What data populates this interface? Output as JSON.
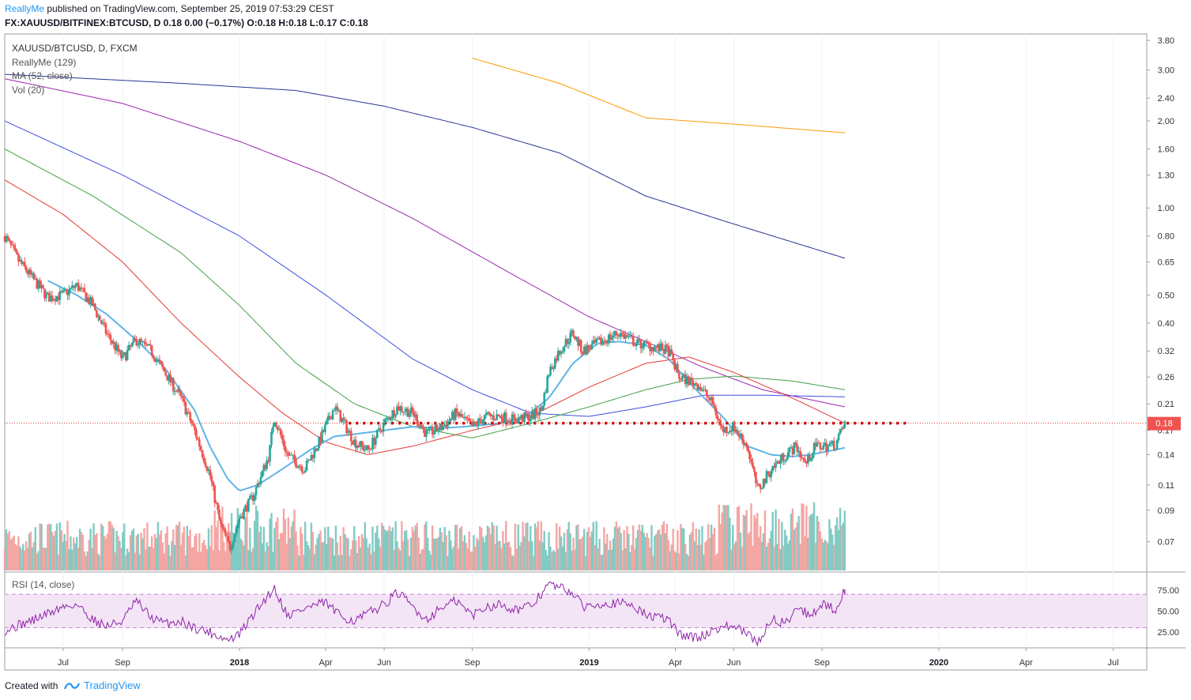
{
  "header": {
    "author": "ReallyMe",
    "published": " published on TradingView.com, September 25, 2019 07:53:29 CEST",
    "symbol_line": "FX:XAUUSD/BITFINEX:BTCUSD, D  0.18 0.00 (−0.17%) O:0.18 H:0.18 L:0.17 C:0.18"
  },
  "legend": {
    "symbol": "XAUUSD/BTCUSD, D, FXCM",
    "indicator1": "ReallyMe (129)",
    "indicator2": "MA (52, close)",
    "indicator3": "Vol (20)"
  },
  "rsi_label": "RSI (14, close)",
  "footer": {
    "created": "Created with",
    "brand": "TradingView"
  },
  "price_badge": "0.18",
  "colors": {
    "up": "#26a69a",
    "down": "#ef5350",
    "vol_up": "#80cbc4",
    "vol_down": "#f4a6a3",
    "ma52": "#5fb4e8",
    "sma_red": "#e53935",
    "sma_green": "#43a047",
    "sma_blue": "#3f51e0",
    "sma_purple": "#9c27b0",
    "sma_navy": "#283593",
    "sma_orange": "#ff9800",
    "rsi": "#8e24aa",
    "rsi_band": "#f3e5f5",
    "support": "#d50000"
  },
  "chart_data": {
    "type": "candlestick",
    "scale": "log",
    "price_ticks": [
      "3.80",
      "3.00",
      "2.40",
      "2.00",
      "1.60",
      "1.30",
      "1.00",
      "0.80",
      "0.65",
      "0.50",
      "0.40",
      "0.32",
      "0.26",
      "0.21",
      "0.17",
      "0.14",
      "0.11",
      "0.09",
      "0.07"
    ],
    "price_tick_values": [
      3.8,
      3.0,
      2.4,
      2.0,
      1.6,
      1.3,
      1.0,
      0.8,
      0.65,
      0.5,
      0.4,
      0.32,
      0.26,
      0.21,
      0.17,
      0.14,
      0.11,
      0.09,
      0.07
    ],
    "ylim": [
      0.055,
      4.0
    ],
    "rsi_ticks": [
      "75.00",
      "50.00",
      "25.00"
    ],
    "rsi_tick_values": [
      75,
      50,
      25
    ],
    "rsi_bands": [
      70,
      30
    ],
    "x_ticks": [
      {
        "label": "Jul",
        "date": "2017-07-01",
        "bold": false
      },
      {
        "label": "Sep",
        "date": "2017-09-01",
        "bold": false
      },
      {
        "label": "2018",
        "date": "2018-01-01",
        "bold": true
      },
      {
        "label": "Apr",
        "date": "2018-04-01",
        "bold": false
      },
      {
        "label": "Jun",
        "date": "2018-06-01",
        "bold": false
      },
      {
        "label": "Sep",
        "date": "2018-09-01",
        "bold": false
      },
      {
        "label": "2019",
        "date": "2019-01-01",
        "bold": true
      },
      {
        "label": "Apr",
        "date": "2019-04-01",
        "bold": false
      },
      {
        "label": "Jun",
        "date": "2019-06-01",
        "bold": false
      },
      {
        "label": "Sep",
        "date": "2019-09-01",
        "bold": false
      },
      {
        "label": "2020",
        "date": "2020-01-01",
        "bold": true
      },
      {
        "label": "Apr",
        "date": "2020-04-01",
        "bold": false
      },
      {
        "label": "Jul",
        "date": "2020-07-01",
        "bold": false
      }
    ],
    "xlim": [
      "2017-05-01",
      "2020-08-05"
    ],
    "last_price": 0.18,
    "support_level": 0.18,
    "support_range": [
      "2018-04-25",
      "2019-12-01"
    ],
    "price_path": [
      [
        "2017-05-01",
        0.8
      ],
      [
        "2017-05-15",
        0.66
      ],
      [
        "2017-06-01",
        0.56
      ],
      [
        "2017-06-15",
        0.49
      ],
      [
        "2017-07-01",
        0.5
      ],
      [
        "2017-07-15",
        0.54
      ],
      [
        "2017-08-01",
        0.46
      ],
      [
        "2017-08-15",
        0.37
      ],
      [
        "2017-09-01",
        0.3
      ],
      [
        "2017-09-15",
        0.35
      ],
      [
        "2017-10-01",
        0.32
      ],
      [
        "2017-10-15",
        0.27
      ],
      [
        "2017-11-01",
        0.22
      ],
      [
        "2017-11-15",
        0.17
      ],
      [
        "2017-12-01",
        0.12
      ],
      [
        "2017-12-12",
        0.08
      ],
      [
        "2017-12-22",
        0.067
      ],
      [
        "2018-01-01",
        0.085
      ],
      [
        "2018-01-15",
        0.1
      ],
      [
        "2018-02-01",
        0.14
      ],
      [
        "2018-02-06",
        0.19
      ],
      [
        "2018-02-20",
        0.14
      ],
      [
        "2018-03-10",
        0.125
      ],
      [
        "2018-03-25",
        0.155
      ],
      [
        "2018-04-10",
        0.205
      ],
      [
        "2018-04-20",
        0.18
      ],
      [
        "2018-05-01",
        0.155
      ],
      [
        "2018-05-15",
        0.145
      ],
      [
        "2018-06-01",
        0.18
      ],
      [
        "2018-06-15",
        0.205
      ],
      [
        "2018-07-01",
        0.195
      ],
      [
        "2018-07-15",
        0.165
      ],
      [
        "2018-08-01",
        0.175
      ],
      [
        "2018-08-15",
        0.195
      ],
      [
        "2018-09-01",
        0.175
      ],
      [
        "2018-09-15",
        0.19
      ],
      [
        "2018-10-01",
        0.19
      ],
      [
        "2018-10-15",
        0.185
      ],
      [
        "2018-11-01",
        0.19
      ],
      [
        "2018-11-12",
        0.2
      ],
      [
        "2018-11-20",
        0.27
      ],
      [
        "2018-12-01",
        0.32
      ],
      [
        "2018-12-15",
        0.37
      ],
      [
        "2018-12-25",
        0.32
      ],
      [
        "2019-01-10",
        0.34
      ],
      [
        "2019-02-01",
        0.37
      ],
      [
        "2019-02-20",
        0.34
      ],
      [
        "2019-03-10",
        0.33
      ],
      [
        "2019-03-25",
        0.32
      ],
      [
        "2019-04-05",
        0.26
      ],
      [
        "2019-04-25",
        0.245
      ],
      [
        "2019-05-10",
        0.21
      ],
      [
        "2019-05-20",
        0.17
      ],
      [
        "2019-06-01",
        0.175
      ],
      [
        "2019-06-15",
        0.15
      ],
      [
        "2019-06-26",
        0.105
      ],
      [
        "2019-07-10",
        0.125
      ],
      [
        "2019-07-25",
        0.14
      ],
      [
        "2019-08-05",
        0.15
      ],
      [
        "2019-08-15",
        0.13
      ],
      [
        "2019-08-25",
        0.15
      ],
      [
        "2019-09-05",
        0.15
      ],
      [
        "2019-09-15",
        0.152
      ],
      [
        "2019-09-25",
        0.18
      ]
    ],
    "ma52_path": [
      [
        "2017-06-15",
        0.56
      ],
      [
        "2017-07-15",
        0.5
      ],
      [
        "2017-08-15",
        0.43
      ],
      [
        "2017-09-15",
        0.35
      ],
      [
        "2017-10-15",
        0.28
      ],
      [
        "2017-11-15",
        0.2
      ],
      [
        "2017-12-01",
        0.15
      ],
      [
        "2017-12-20",
        0.115
      ],
      [
        "2018-01-01",
        0.105
      ],
      [
        "2018-01-20",
        0.11
      ],
      [
        "2018-02-15",
        0.125
      ],
      [
        "2018-03-15",
        0.145
      ],
      [
        "2018-04-10",
        0.162
      ],
      [
        "2018-05-01",
        0.165
      ],
      [
        "2018-06-01",
        0.17
      ],
      [
        "2018-07-01",
        0.175
      ],
      [
        "2018-08-01",
        0.173
      ],
      [
        "2018-09-01",
        0.176
      ],
      [
        "2018-10-01",
        0.18
      ],
      [
        "2018-10-25",
        0.188
      ],
      [
        "2018-11-20",
        0.22
      ],
      [
        "2018-12-15",
        0.29
      ],
      [
        "2019-01-10",
        0.34
      ],
      [
        "2019-02-01",
        0.345
      ],
      [
        "2019-03-01",
        0.335
      ],
      [
        "2019-03-25",
        0.3
      ],
      [
        "2019-04-20",
        0.24
      ],
      [
        "2019-05-20",
        0.19
      ],
      [
        "2019-06-15",
        0.15
      ],
      [
        "2019-07-10",
        0.14
      ],
      [
        "2019-08-01",
        0.138
      ],
      [
        "2019-08-20",
        0.14
      ],
      [
        "2019-09-25",
        0.148
      ]
    ],
    "sma_red_path": [
      [
        "2017-05-01",
        1.25
      ],
      [
        "2017-07-01",
        0.95
      ],
      [
        "2017-09-01",
        0.65
      ],
      [
        "2017-11-01",
        0.4
      ],
      [
        "2018-01-01",
        0.26
      ],
      [
        "2018-02-15",
        0.195
      ],
      [
        "2018-04-01",
        0.155
      ],
      [
        "2018-05-15",
        0.14
      ],
      [
        "2018-07-01",
        0.15
      ],
      [
        "2018-09-01",
        0.17
      ],
      [
        "2018-11-01",
        0.19
      ],
      [
        "2019-01-01",
        0.24
      ],
      [
        "2019-03-01",
        0.29
      ],
      [
        "2019-04-15",
        0.305
      ],
      [
        "2019-06-01",
        0.27
      ],
      [
        "2019-08-01",
        0.22
      ],
      [
        "2019-09-25",
        0.18
      ]
    ],
    "sma_green_path": [
      [
        "2017-05-01",
        1.6
      ],
      [
        "2017-08-01",
        1.1
      ],
      [
        "2017-11-01",
        0.7
      ],
      [
        "2018-01-01",
        0.46
      ],
      [
        "2018-03-01",
        0.29
      ],
      [
        "2018-05-01",
        0.21
      ],
      [
        "2018-07-01",
        0.175
      ],
      [
        "2018-09-01",
        0.16
      ],
      [
        "2018-11-01",
        0.18
      ],
      [
        "2019-01-01",
        0.205
      ],
      [
        "2019-03-01",
        0.235
      ],
      [
        "2019-04-15",
        0.255
      ],
      [
        "2019-06-01",
        0.262
      ],
      [
        "2019-08-01",
        0.252
      ],
      [
        "2019-09-25",
        0.235
      ]
    ],
    "sma_blue_path": [
      [
        "2017-05-01",
        2.0
      ],
      [
        "2017-09-01",
        1.3
      ],
      [
        "2018-01-01",
        0.8
      ],
      [
        "2018-04-01",
        0.5
      ],
      [
        "2018-07-01",
        0.3
      ],
      [
        "2018-09-01",
        0.235
      ],
      [
        "2018-11-01",
        0.195
      ],
      [
        "2019-01-01",
        0.19
      ],
      [
        "2019-03-01",
        0.205
      ],
      [
        "2019-05-01",
        0.225
      ],
      [
        "2019-07-01",
        0.225
      ],
      [
        "2019-09-25",
        0.222
      ]
    ],
    "sma_purple_path": [
      [
        "2017-05-01",
        2.8
      ],
      [
        "2017-09-01",
        2.3
      ],
      [
        "2018-01-01",
        1.7
      ],
      [
        "2018-04-01",
        1.3
      ],
      [
        "2018-07-01",
        0.92
      ],
      [
        "2018-10-01",
        0.62
      ],
      [
        "2019-01-01",
        0.42
      ],
      [
        "2019-03-01",
        0.345
      ],
      [
        "2019-05-01",
        0.28
      ],
      [
        "2019-07-01",
        0.235
      ],
      [
        "2019-09-25",
        0.205
      ]
    ],
    "sma_navy_path": [
      [
        "2017-05-01",
        2.9
      ],
      [
        "2017-11-01",
        2.7
      ],
      [
        "2018-03-01",
        2.55
      ],
      [
        "2018-06-01",
        2.25
      ],
      [
        "2018-09-01",
        1.9
      ],
      [
        "2018-12-01",
        1.55
      ],
      [
        "2019-03-01",
        1.1
      ],
      [
        "2019-06-01",
        0.88
      ],
      [
        "2019-09-25",
        0.67
      ]
    ],
    "sma_orange_path": [
      [
        "2018-09-01",
        3.3
      ],
      [
        "2018-12-01",
        2.7
      ],
      [
        "2019-03-01",
        2.05
      ],
      [
        "2019-06-01",
        1.95
      ],
      [
        "2019-09-25",
        1.82
      ]
    ],
    "rsi_path": [
      [
        "2017-05-01",
        27
      ],
      [
        "2017-06-01",
        40
      ],
      [
        "2017-07-01",
        55
      ],
      [
        "2017-07-15",
        58
      ],
      [
        "2017-08-01",
        40
      ],
      [
        "2017-08-15",
        32
      ],
      [
        "2017-09-01",
        38
      ],
      [
        "2017-09-15",
        62
      ],
      [
        "2017-10-01",
        42
      ],
      [
        "2017-10-15",
        35
      ],
      [
        "2017-11-01",
        38
      ],
      [
        "2017-11-15",
        30
      ],
      [
        "2017-12-01",
        25
      ],
      [
        "2017-12-20",
        15
      ],
      [
        "2018-01-01",
        22
      ],
      [
        "2018-01-15",
        45
      ],
      [
        "2018-02-06",
        78
      ],
      [
        "2018-02-20",
        45
      ],
      [
        "2018-03-15",
        55
      ],
      [
        "2018-04-01",
        60
      ],
      [
        "2018-04-15",
        45
      ],
      [
        "2018-05-01",
        38
      ],
      [
        "2018-06-01",
        58
      ],
      [
        "2018-06-15",
        72
      ],
      [
        "2018-07-01",
        55
      ],
      [
        "2018-07-15",
        40
      ],
      [
        "2018-08-01",
        55
      ],
      [
        "2018-08-15",
        62
      ],
      [
        "2018-09-01",
        45
      ],
      [
        "2018-09-15",
        55
      ],
      [
        "2018-10-01",
        58
      ],
      [
        "2018-10-15",
        52
      ],
      [
        "2018-11-01",
        55
      ],
      [
        "2018-11-20",
        82
      ],
      [
        "2018-12-01",
        78
      ],
      [
        "2018-12-15",
        72
      ],
      [
        "2018-12-25",
        55
      ],
      [
        "2019-01-15",
        60
      ],
      [
        "2019-02-15",
        58
      ],
      [
        "2019-03-01",
        45
      ],
      [
        "2019-03-25",
        40
      ],
      [
        "2019-04-05",
        22
      ],
      [
        "2019-04-25",
        18
      ],
      [
        "2019-05-15",
        30
      ],
      [
        "2019-06-01",
        32
      ],
      [
        "2019-06-15",
        22
      ],
      [
        "2019-06-26",
        12
      ],
      [
        "2019-07-10",
        40
      ],
      [
        "2019-07-25",
        35
      ],
      [
        "2019-08-05",
        55
      ],
      [
        "2019-08-20",
        45
      ],
      [
        "2019-09-01",
        58
      ],
      [
        "2019-09-15",
        52
      ],
      [
        "2019-09-25",
        76
      ]
    ]
  }
}
